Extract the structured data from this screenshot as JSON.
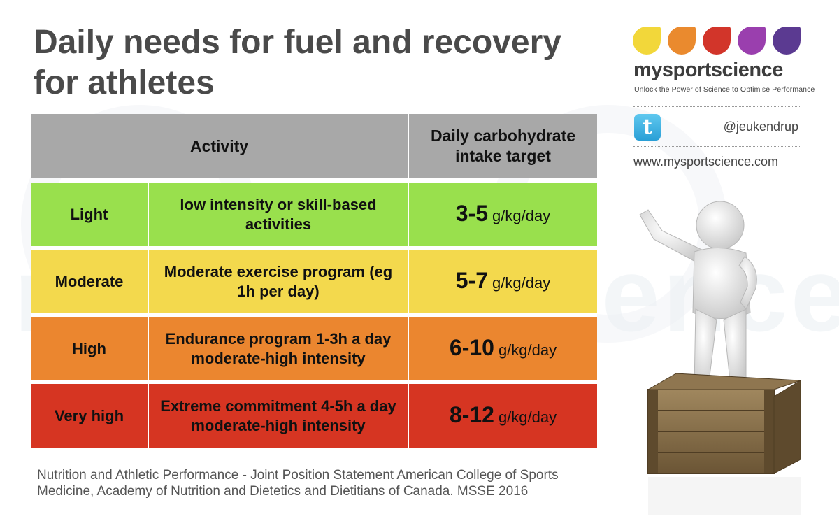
{
  "title": "Daily needs for fuel and recovery for athletes",
  "watermark": "mysportscience",
  "table": {
    "headers": [
      "Activity",
      "Daily carbohydrate intake target"
    ],
    "rows": [
      {
        "level": "Light",
        "description": "low intensity or skill-based activities",
        "range": "3-5",
        "unit": "g/kg/day"
      },
      {
        "level": "Moderate",
        "description": "Moderate exercise program (eg 1h per day)",
        "range": "5-7",
        "unit": "g/kg/day"
      },
      {
        "level": "High",
        "description": "Endurance program 1-3h a day moderate-high intensity",
        "range": "6-10",
        "unit": "g/kg/day"
      },
      {
        "level": "Very high",
        "description": "Extreme commitment 4-5h a day moderate-high intensity",
        "range": "8-12",
        "unit": "g/kg/day"
      }
    ]
  },
  "reference": "Nutrition and Athletic Performance - Joint Position Statement American College of Sports Medicine, Academy of Nutrition and Dietetics and Dietitians of Canada. MSSE 2016",
  "brand": {
    "name": "mysportscience",
    "tagline": "Unlock the Power of Science to Optimise Performance",
    "drop_colors": [
      "#f2d73a",
      "#ea8a2e",
      "#d2352a",
      "#9a3fae",
      "#5b3a91"
    ]
  },
  "social": {
    "icon": "twitter-icon",
    "twitter_glyph": "t",
    "handle": "@jeukendrup",
    "website": "www.mysportscience.com"
  },
  "colors": {
    "light": "#99e04d",
    "moderate": "#f3d94d",
    "high": "#eb862f",
    "very_high": "#d63522",
    "header": "#a8a8a8"
  }
}
